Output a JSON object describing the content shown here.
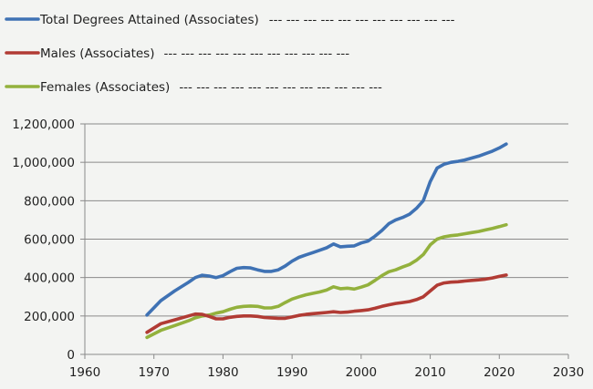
{
  "chart_data": {
    "type": "line",
    "title": "",
    "xlabel": "",
    "ylabel": "",
    "xlim": [
      1960,
      2030
    ],
    "ylim": [
      0,
      1200000
    ],
    "x_ticks": [
      1960,
      1970,
      1980,
      1990,
      2000,
      2010,
      2020,
      2030
    ],
    "y_ticks": [
      0,
      200000,
      400000,
      600000,
      800000,
      1000000,
      1200000
    ],
    "x_tick_labels": [
      "1960",
      "1970",
      "1980",
      "1990",
      "2000",
      "2010",
      "2020",
      "2030"
    ],
    "y_tick_labels": [
      "0",
      "200,000",
      "400,000",
      "600,000",
      "800,000",
      "1,000,000",
      "1,200,000"
    ],
    "grid": "horizontal",
    "legend_position": "top-left",
    "series": [
      {
        "name": "Total Degrees Attained (Associates)",
        "legend_suffix": "--- --- --- --- --- --- --- --- --- --- ---",
        "color": "#3f72b4",
        "x": [
          1969,
          1971,
          1973,
          1975,
          1976,
          1977,
          1978,
          1979,
          1980,
          1981,
          1982,
          1983,
          1984,
          1985,
          1986,
          1987,
          1988,
          1989,
          1990,
          1991,
          1992,
          1993,
          1994,
          1995,
          1996,
          1997,
          1998,
          1999,
          2000,
          2001,
          2002,
          2003,
          2004,
          2005,
          2006,
          2007,
          2008,
          2009,
          2010,
          2011,
          2012,
          2013,
          2014,
          2015,
          2016,
          2017,
          2018,
          2019,
          2020,
          2021
        ],
        "y": [
          205000,
          280000,
          330000,
          375000,
          400000,
          412000,
          408000,
          400000,
          410000,
          430000,
          448000,
          452000,
          450000,
          440000,
          432000,
          432000,
          440000,
          460000,
          485000,
          505000,
          518000,
          530000,
          542000,
          555000,
          575000,
          560000,
          563000,
          565000,
          580000,
          590000,
          615000,
          645000,
          680000,
          700000,
          713000,
          730000,
          760000,
          800000,
          900000,
          970000,
          990000,
          1000000,
          1005000,
          1012000,
          1022000,
          1032000,
          1045000,
          1058000,
          1075000,
          1095000
        ]
      },
      {
        "name": "Males (Associates)",
        "legend_suffix": "--- --- --- --- --- --- --- --- --- --- ---",
        "color": "#b13b34",
        "x": [
          1969,
          1971,
          1973,
          1975,
          1976,
          1977,
          1978,
          1979,
          1980,
          1981,
          1982,
          1983,
          1984,
          1985,
          1986,
          1987,
          1988,
          1989,
          1990,
          1991,
          1992,
          1993,
          1994,
          1995,
          1996,
          1997,
          1998,
          1999,
          2000,
          2001,
          2002,
          2003,
          2004,
          2005,
          2006,
          2007,
          2008,
          2009,
          2010,
          2011,
          2012,
          2013,
          2014,
          2015,
          2016,
          2017,
          2018,
          2019,
          2020,
          2021
        ],
        "y": [
          115000,
          160000,
          180000,
          200000,
          210000,
          208000,
          198000,
          185000,
          185000,
          193000,
          198000,
          200000,
          200000,
          198000,
          192000,
          190000,
          188000,
          188000,
          195000,
          203000,
          208000,
          212000,
          215000,
          218000,
          222000,
          218000,
          220000,
          225000,
          228000,
          232000,
          240000,
          250000,
          258000,
          265000,
          270000,
          275000,
          285000,
          300000,
          330000,
          360000,
          372000,
          376000,
          378000,
          382000,
          385000,
          388000,
          392000,
          398000,
          406000,
          413000
        ]
      },
      {
        "name": "Females (Associates)",
        "legend_suffix": "--- --- --- --- --- --- --- --- --- --- --- ---",
        "color": "#93b13d",
        "x": [
          1969,
          1971,
          1973,
          1975,
          1976,
          1977,
          1978,
          1979,
          1980,
          1981,
          1982,
          1983,
          1984,
          1985,
          1986,
          1987,
          1988,
          1989,
          1990,
          1991,
          1992,
          1993,
          1994,
          1995,
          1996,
          1997,
          1998,
          1999,
          2000,
          2001,
          2002,
          2003,
          2004,
          2005,
          2006,
          2007,
          2008,
          2009,
          2010,
          2011,
          2012,
          2013,
          2014,
          2015,
          2016,
          2017,
          2018,
          2019,
          2020,
          2021
        ],
        "y": [
          88000,
          125000,
          150000,
          175000,
          190000,
          200000,
          205000,
          215000,
          222000,
          235000,
          245000,
          250000,
          252000,
          250000,
          242000,
          242000,
          250000,
          270000,
          288000,
          300000,
          310000,
          318000,
          325000,
          335000,
          352000,
          342000,
          345000,
          340000,
          350000,
          362000,
          385000,
          410000,
          430000,
          440000,
          455000,
          468000,
          490000,
          520000,
          570000,
          600000,
          612000,
          618000,
          622000,
          628000,
          634000,
          640000,
          648000,
          656000,
          665000,
          675000
        ]
      }
    ]
  }
}
